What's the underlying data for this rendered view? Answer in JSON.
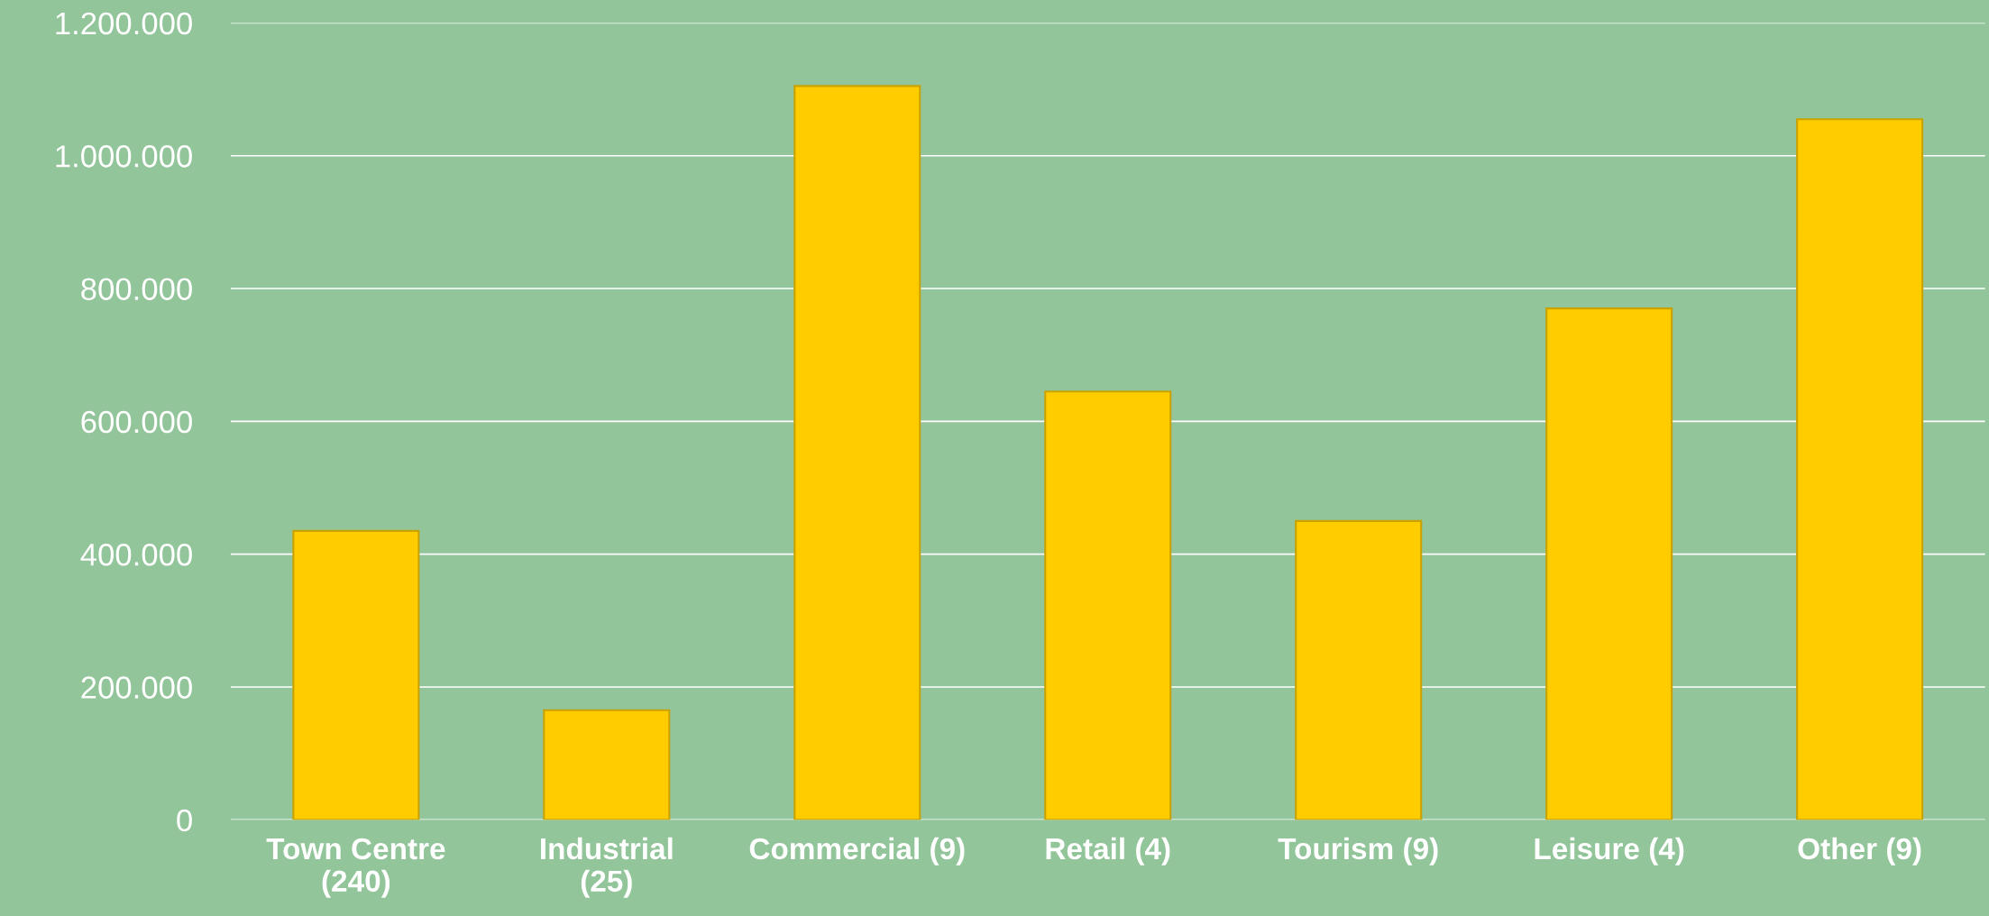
{
  "chart_data": {
    "type": "bar",
    "categories": [
      "Town Centre (240)",
      "Industrial (25)",
      "Commercial (9)",
      "Retail (4)",
      "Tourism (9)",
      "Leisure (4)",
      "Other (9)"
    ],
    "values": [
      435000,
      165000,
      1105000,
      645000,
      450000,
      770000,
      1055000
    ],
    "color": "#ffcc00",
    "ylim": [
      0,
      1200000
    ],
    "yticks": [
      {
        "value": 0,
        "label": "0"
      },
      {
        "value": 200000,
        "label": "200.000"
      },
      {
        "value": 400000,
        "label": "400.000"
      },
      {
        "value": 600000,
        "label": "600.000"
      },
      {
        "value": 800000,
        "label": "800.000"
      },
      {
        "value": 1000000,
        "label": "1.000.000"
      },
      {
        "value": 1200000,
        "label": "1.200.000"
      }
    ],
    "grid": "y"
  }
}
